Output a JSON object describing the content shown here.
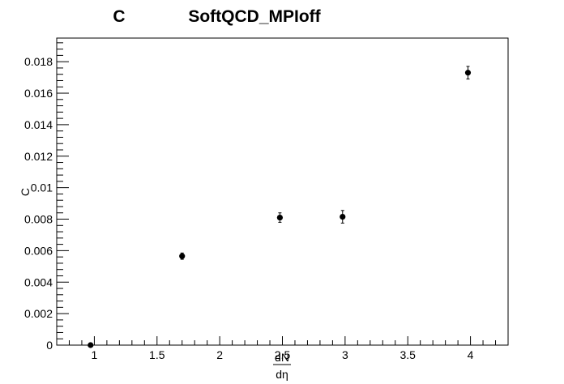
{
  "chart_data": {
    "type": "scatter",
    "title_left": "C",
    "title": "SoftQCD_MPIoff",
    "xlabel_numerator": "dN",
    "xlabel_denominator": "dη",
    "ylabel": "C",
    "xlim": [
      0.7,
      4.3
    ],
    "ylim": [
      0,
      0.0195
    ],
    "x_ticks": [
      1,
      1.5,
      2,
      2.5,
      3,
      3.5,
      4
    ],
    "x_tick_labels": [
      "1",
      "1.5",
      "2",
      "2.5",
      "3",
      "3.5",
      "4"
    ],
    "y_ticks": [
      0,
      0.002,
      0.004,
      0.006,
      0.008,
      0.01,
      0.012,
      0.014,
      0.016,
      0.018
    ],
    "y_tick_labels": [
      "0",
      "0.002",
      "0.004",
      "0.006",
      "0.008",
      "0.01",
      "0.012",
      "0.014",
      "0.016",
      "0.018"
    ],
    "grid": false,
    "points": [
      {
        "x": 0.97,
        "y": 0.0,
        "err": 0.0
      },
      {
        "x": 1.7,
        "y": 0.00565,
        "err": 0.0002
      },
      {
        "x": 2.48,
        "y": 0.0081,
        "err": 0.0003
      },
      {
        "x": 2.98,
        "y": 0.00815,
        "err": 0.0004
      },
      {
        "x": 3.98,
        "y": 0.0173,
        "err": 0.0004
      }
    ],
    "marker_color": "#000000"
  }
}
